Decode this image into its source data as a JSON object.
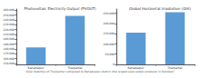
{
  "chart_data": [
    {
      "type": "bar",
      "title": "Photovoltaic Electricity Output (PVOUT)",
      "categories": [
        "Bahawalpur",
        "Tharparkar"
      ],
      "values": [
        183000,
        248000
      ],
      "color": "#5b9bd5",
      "ylim": [
        148000,
        262000
      ],
      "yticks": [
        {
          "value": 150000,
          "label": "150,000"
        },
        {
          "value": 160000,
          "label": "160,000"
        },
        {
          "value": 170000,
          "label": "170,000"
        },
        {
          "value": 180000,
          "label": "180,000"
        },
        {
          "value": 190000,
          "label": "190,000"
        },
        {
          "value": 200000,
          "label": "200,000"
        },
        {
          "value": 210000,
          "label": "210,000"
        },
        {
          "value": 220000,
          "label": "220,000"
        },
        {
          "value": 230000,
          "label": "230,000"
        },
        {
          "value": 240000,
          "label": "240,000"
        },
        {
          "value": 250000,
          "label": "250,000"
        },
        {
          "value": 260000,
          "label": "260,000"
        }
      ],
      "grid": false
    },
    {
      "type": "bar",
      "title": "Global Horizontal Irradiation (GHI)",
      "categories": [
        "Bahawalpur",
        "Tharparkar"
      ],
      "values": [
        155000,
        255000
      ],
      "color": "#5b9bd5",
      "ylim": [
        0,
        270000
      ],
      "yticks": [
        0,
        {
          "value": 50000,
          "label": "50,000"
        },
        {
          "value": 100000,
          "label": "100,000"
        },
        {
          "value": 150000,
          "label": "150,000"
        },
        {
          "value": 200000,
          "label": "200,000"
        },
        {
          "value": 250000,
          "label": "250,000"
        }
      ],
      "grid": false
    }
  ],
  "footer": "Solar Potential of Tharparkar compared to Bahawalpur district (the largest solar power producer in Pakistan)"
}
